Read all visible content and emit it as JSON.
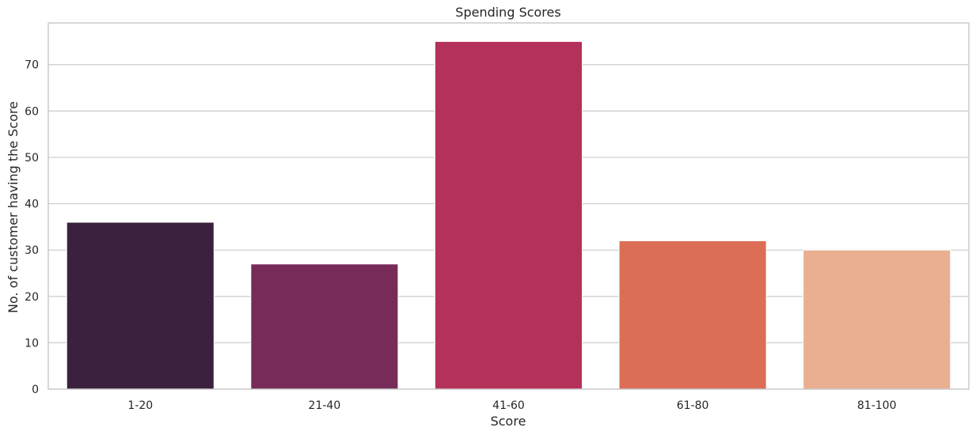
{
  "chart_data": {
    "type": "bar",
    "title": "Spending Scores",
    "xlabel": "Score",
    "ylabel": "No. of customer having the Score",
    "categories": [
      "1-20",
      "21-40",
      "41-60",
      "61-80",
      "81-100"
    ],
    "values": [
      36,
      27,
      75,
      32,
      30
    ],
    "colors": [
      "#3b213d",
      "#762b58",
      "#b43159",
      "#dc6e57",
      "#e9af90"
    ],
    "ylim": [
      0,
      79
    ],
    "yticks": [
      0,
      10,
      20,
      30,
      40,
      50,
      60,
      70
    ],
    "grid": true,
    "legend": "none"
  }
}
